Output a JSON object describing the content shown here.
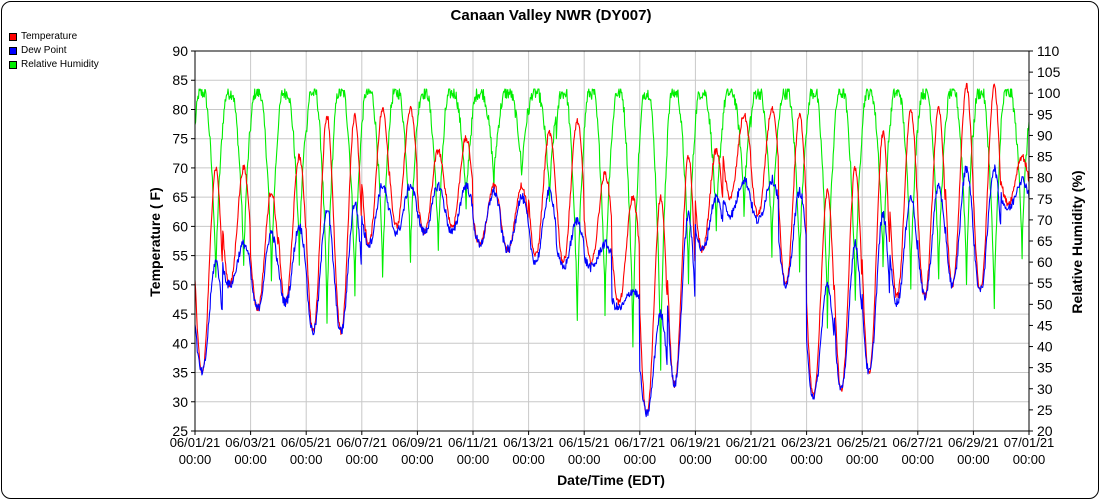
{
  "chart_data": {
    "type": "line",
    "title": "Canaan Valley NWR (DY007)",
    "xlabel": "Date/Time (EDT)",
    "ylabel_left": "Temperature ( F)",
    "ylabel_right": "Relative Humidity (%)",
    "ylim_left": [
      25,
      90
    ],
    "ylim_right": [
      20,
      110
    ],
    "yticks_left": [
      "25",
      "30",
      "35",
      "40",
      "45",
      "50",
      "55",
      "60",
      "65",
      "70",
      "75",
      "80",
      "85",
      "90"
    ],
    "yticks_right": [
      "20",
      "25",
      "30",
      "35",
      "40",
      "45",
      "50",
      "55",
      "60",
      "65",
      "70",
      "75",
      "80",
      "85",
      "90",
      "95",
      "100",
      "105",
      "110"
    ],
    "xticks": [
      {
        "date": "06/01/21",
        "time": "00:00",
        "day": 0
      },
      {
        "date": "06/03/21",
        "time": "00:00",
        "day": 2
      },
      {
        "date": "06/05/21",
        "time": "00:00",
        "day": 4
      },
      {
        "date": "06/07/21",
        "time": "00:00",
        "day": 6
      },
      {
        "date": "06/09/21",
        "time": "00:00",
        "day": 8
      },
      {
        "date": "06/11/21",
        "time": "00:00",
        "day": 10
      },
      {
        "date": "06/13/21",
        "time": "00:00",
        "day": 12
      },
      {
        "date": "06/15/21",
        "time": "00:00",
        "day": 14
      },
      {
        "date": "06/17/21",
        "time": "00:00",
        "day": 16
      },
      {
        "date": "06/19/21",
        "time": "00:00",
        "day": 18
      },
      {
        "date": "06/21/21",
        "time": "00:00",
        "day": 20
      },
      {
        "date": "06/23/21",
        "time": "00:00",
        "day": 22
      },
      {
        "date": "06/25/21",
        "time": "00:00",
        "day": 24
      },
      {
        "date": "06/27/21",
        "time": "00:00",
        "day": 26
      },
      {
        "date": "06/29/21",
        "time": "00:00",
        "day": 28
      },
      {
        "date": "07/01/21",
        "time": "00:00",
        "day": 30
      }
    ],
    "xlim_days": [
      0,
      30
    ],
    "grid": true,
    "series": [
      {
        "name": "Temperature",
        "color": "#ff0000",
        "axis": "left",
        "daily_max": [
          70,
          70,
          66,
          72,
          79,
          79,
          80,
          80,
          73,
          75,
          67,
          67,
          76,
          78,
          69,
          65,
          65,
          72,
          73,
          79,
          80,
          79,
          66,
          70,
          76,
          80,
          80,
          84,
          84,
          72
        ],
        "daily_min": [
          35,
          50,
          46,
          47,
          42,
          42,
          57,
          60,
          59,
          60,
          57,
          56,
          55,
          54,
          54,
          47,
          28,
          33,
          56,
          65,
          62,
          50,
          31,
          32,
          35,
          48,
          48,
          50,
          49,
          64
        ]
      },
      {
        "name": "Dew Point",
        "color": "#0000ff",
        "axis": "left",
        "daily_max": [
          54,
          57,
          59,
          60,
          63,
          64,
          67,
          67,
          67,
          67,
          66,
          65,
          66,
          61,
          57,
          49,
          45,
          62,
          65,
          68,
          68,
          66,
          50,
          57,
          62,
          65,
          67,
          70,
          70,
          68
        ],
        "daily_min": [
          35,
          50,
          46,
          47,
          42,
          42,
          57,
          59,
          59,
          59,
          57,
          56,
          54,
          53,
          53,
          46,
          28,
          33,
          56,
          62,
          61,
          50,
          31,
          32,
          35,
          47,
          48,
          50,
          49,
          63
        ]
      },
      {
        "name": "Relative Humidity",
        "color": "#00ee00",
        "axis": "right",
        "daily_max": [
          100,
          100,
          100,
          100,
          100,
          100,
          100,
          100,
          100,
          100,
          100,
          100,
          100,
          100,
          100,
          100,
          100,
          100,
          100,
          100,
          100,
          100,
          100,
          100,
          100,
          100,
          100,
          100,
          100,
          100
        ],
        "daily_min": [
          55,
          58,
          55,
          60,
          45,
          52,
          55,
          60,
          62,
          72,
          78,
          80,
          74,
          45,
          48,
          40,
          35,
          55,
          66,
          72,
          62,
          58,
          45,
          50,
          58,
          55,
          55,
          55,
          48,
          62
        ]
      }
    ]
  }
}
